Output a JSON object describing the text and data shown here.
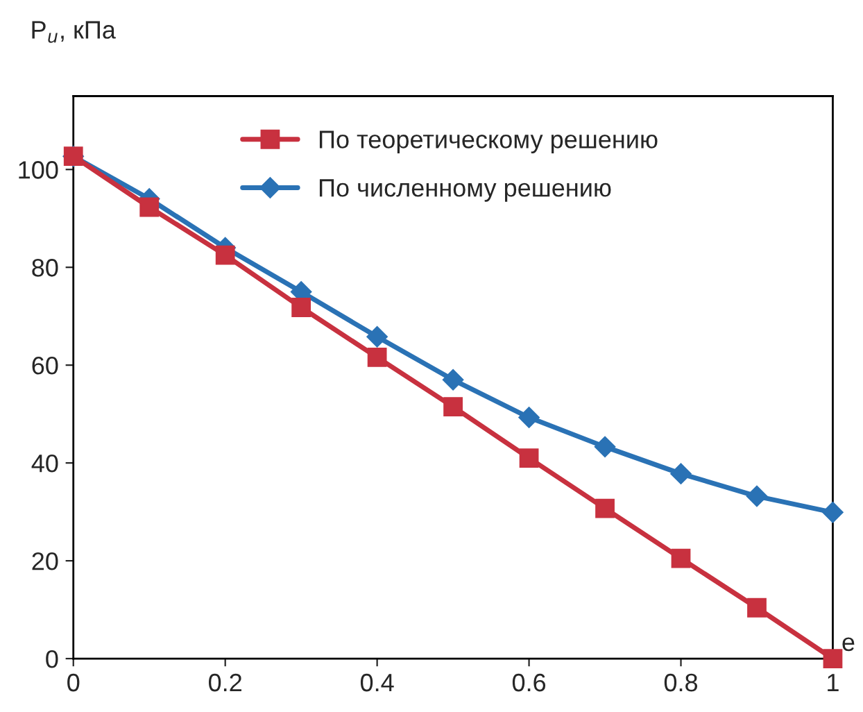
{
  "chart_data": {
    "type": "line",
    "ylabel": "P$_{u}$, кПа",
    "xlabel": "e",
    "xlim": [
      0,
      1
    ],
    "ylim": [
      0,
      115
    ],
    "xticks": [
      0,
      0.2,
      0.4,
      0.6,
      0.8,
      1
    ],
    "yticks": [
      0,
      20,
      40,
      60,
      80,
      100
    ],
    "grid": false,
    "legend": "top right",
    "line_style": "solid",
    "series": [
      {
        "name": "По теоретическому решению",
        "color": "#c8313f",
        "marker": "square",
        "x": [
          0,
          0.1,
          0.2,
          0.3,
          0.4,
          0.5,
          0.6,
          0.7,
          0.8,
          0.9,
          1
        ],
        "values": [
          102.7,
          92.3,
          82.5,
          71.8,
          61.6,
          51.5,
          41,
          30.7,
          20.5,
          10.4,
          0
        ]
      },
      {
        "name": "По численному решению",
        "color": "#2a72b5",
        "marker": "diamond",
        "x": [
          0,
          0.1,
          0.2,
          0.3,
          0.4,
          0.5,
          0.6,
          0.7,
          0.8,
          0.9,
          1
        ],
        "values": [
          102.7,
          94,
          84,
          75,
          65.8,
          57,
          49.3,
          43.3,
          37.8,
          33.2,
          29.9
        ]
      }
    ]
  }
}
